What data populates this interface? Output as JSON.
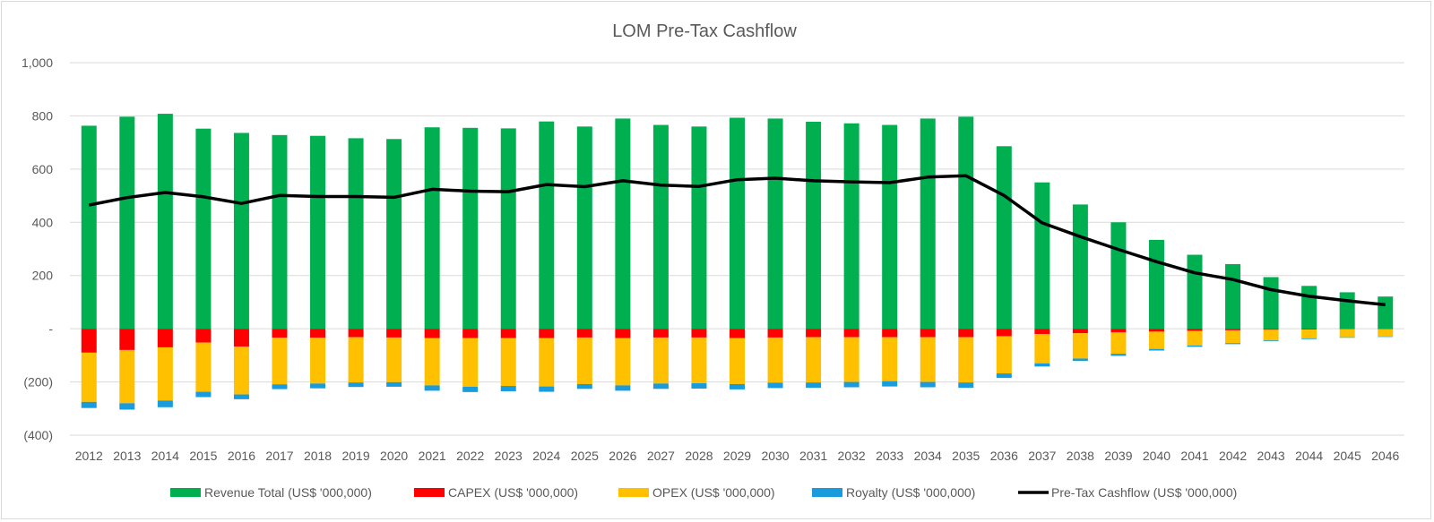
{
  "chart_data": {
    "type": "bar",
    "title": "LOM Pre-Tax Cashflow",
    "xlabel": "",
    "ylabel": "",
    "ylim": [
      -400,
      1000
    ],
    "y_ticks": [
      -400,
      -200,
      0,
      200,
      400,
      600,
      800,
      1000
    ],
    "y_tick_labels": [
      "(400)",
      "(200)",
      "-",
      "200",
      "400",
      "600",
      "800",
      "1,000"
    ],
    "grid": true,
    "legend_position": "bottom",
    "categories": [
      "2012",
      "2013",
      "2014",
      "2015",
      "2016",
      "2017",
      "2018",
      "2019",
      "2020",
      "2021",
      "2022",
      "2023",
      "2024",
      "2025",
      "2026",
      "2027",
      "2028",
      "2029",
      "2030",
      "2031",
      "2032",
      "2033",
      "2034",
      "2035",
      "2036",
      "2037",
      "2038",
      "2039",
      "2040",
      "2041",
      "2042",
      "2043",
      "2044",
      "2045",
      "2046"
    ],
    "series": [
      {
        "name": "Revenue Total (US$ '000,000)",
        "kind": "bar",
        "color": "#00b050",
        "values": [
          763,
          797,
          808,
          752,
          736,
          728,
          725,
          716,
          713,
          757,
          755,
          753,
          779,
          760,
          790,
          766,
          760,
          793,
          790,
          778,
          772,
          766,
          790,
          797,
          686,
          550,
          467,
          400,
          334,
          278,
          243,
          194,
          161,
          137,
          121
        ]
      },
      {
        "name": "CAPEX (US$ '000,000)",
        "kind": "bar",
        "color": "#ff0000",
        "values": [
          -90,
          -80,
          -70,
          -52,
          -67,
          -34,
          -34,
          -32,
          -33,
          -35,
          -35,
          -35,
          -35,
          -33,
          -35,
          -33,
          -33,
          -35,
          -33,
          -32,
          -32,
          -32,
          -32,
          -32,
          -28,
          -20,
          -17,
          -14,
          -11,
          -8,
          -6,
          -4,
          -3,
          -2,
          -2
        ]
      },
      {
        "name": "OPEX (US$ '000,000)",
        "kind": "bar",
        "color": "#ffc000",
        "values": [
          -185,
          -200,
          -200,
          -185,
          -180,
          -175,
          -172,
          -170,
          -168,
          -178,
          -183,
          -180,
          -182,
          -175,
          -178,
          -173,
          -172,
          -173,
          -170,
          -170,
          -168,
          -165,
          -168,
          -170,
          -140,
          -110,
          -95,
          -80,
          -65,
          -55,
          -48,
          -40,
          -33,
          -30,
          -27
        ]
      },
      {
        "name": "Royalty (US$ '000,000)",
        "kind": "bar",
        "color": "#1a9bdc",
        "values": [
          -23,
          -24,
          -25,
          -20,
          -18,
          -18,
          -18,
          -17,
          -17,
          -20,
          -20,
          -20,
          -20,
          -18,
          -20,
          -20,
          -20,
          -20,
          -20,
          -20,
          -20,
          -20,
          -20,
          -20,
          -17,
          -12,
          -9,
          -8,
          -6,
          -5,
          -4,
          -3,
          -3,
          -2,
          -2
        ]
      },
      {
        "name": "Pre-Tax Cashflow (US$ '000,000)",
        "kind": "line",
        "color": "#000000",
        "values": [
          465,
          493,
          512,
          496,
          471,
          501,
          497,
          497,
          494,
          524,
          517,
          515,
          542,
          534,
          556,
          540,
          535,
          560,
          566,
          556,
          552,
          549,
          570,
          575,
          501,
          398,
          346,
          298,
          252,
          210,
          185,
          147,
          122,
          105,
          90
        ]
      }
    ]
  }
}
